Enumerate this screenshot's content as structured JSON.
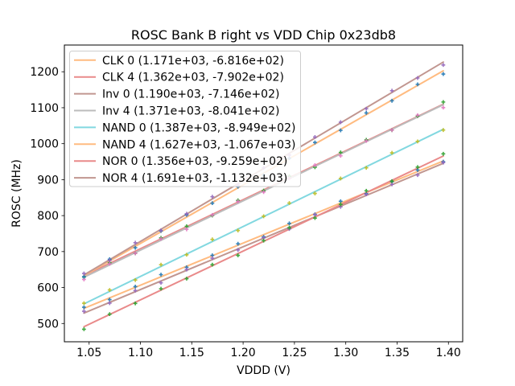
{
  "chart_data": {
    "type": "scatter",
    "title": "ROSC Bank B right vs VDD Chip 0x23db8",
    "xlabel": "VDDD (V)",
    "ylabel": "ROSC (MHz)",
    "xlim": [
      1.0259,
      1.4139
    ],
    "ylim": [
      449.2,
      1274.3
    ],
    "xticks": [
      1.05,
      1.1,
      1.15,
      1.2,
      1.25,
      1.3,
      1.35,
      1.4
    ],
    "xtick_labels": [
      "1.05",
      "1.10",
      "1.15",
      "1.20",
      "1.25",
      "1.30",
      "1.35",
      "1.40"
    ],
    "yticks": [
      500,
      600,
      700,
      800,
      900,
      1000,
      1100,
      1200
    ],
    "ytick_labels": [
      "500",
      "600",
      "700",
      "800",
      "900",
      "1000",
      "1100",
      "1200"
    ],
    "grid": false,
    "legend_position": "upper left",
    "legend_border_color": "#cccccc",
    "axis_color": "#000000",
    "fit_range": [
      1.045,
      1.395
    ],
    "x": [
      1.045,
      1.07,
      1.095,
      1.12,
      1.145,
      1.17,
      1.195,
      1.22,
      1.245,
      1.27,
      1.295,
      1.32,
      1.345,
      1.37,
      1.395
    ],
    "series": [
      {
        "name": "CLK 0",
        "legend_label": "CLK 0 (1.171e+03, -6.816e+02)",
        "fit_slope": 1171.0,
        "fit_intercept": -681.6,
        "line_color": "#ffbb80",
        "marker_color": "#1f77b4",
        "y": [
          545.1,
          566.4,
          602.6,
          635.9,
          656.2,
          689.5,
          721.7,
          741.0,
          778.3,
          803.6,
          839.8,
          861.1,
          894.4,
          926.7,
          949.9
        ]
      },
      {
        "name": "CLK 4",
        "legend_label": "CLK 4 (1.362e+03, -7.902e+02)",
        "fit_slope": 1362.0,
        "fit_intercept": -790.2,
        "line_color": "#e98a8a",
        "marker_color": "#2ca02c",
        "y": [
          629.1,
          669.1,
          695.2,
          738.2,
          770.3,
          800.3,
          842.4,
          869.4,
          909.5,
          934.5,
          975.6,
          1010.6,
          1037.7,
          1076.7,
          1115.8
        ]
      },
      {
        "name": "Inv 0",
        "legend_label": "Inv 0 (1.190e+03, -7.146e+02)",
        "fit_slope": 1190.0,
        "fit_intercept": -714.6,
        "line_color": "#c19690",
        "marker_color": "#9467bd",
        "y": [
          534.0,
          556.7,
          591.5,
          613.2,
          650.0,
          681.7,
          704.5,
          738.2,
          762.9,
          802.7,
          824.4,
          859.2,
          886.9,
          912.7,
          947.4
        ]
      },
      {
        "name": "Inv 4",
        "legend_label": "Inv 4 (1.371e+03, -8.041e+02)",
        "fit_slope": 1371.0,
        "fit_intercept": -804.1,
        "line_color": "#bcbcbc",
        "marker_color": "#e377c2",
        "y": [
          622.6,
          665.9,
          695.1,
          735.4,
          761.7,
          802.0,
          839.2,
          865.5,
          903.8,
          940.1,
          966.3,
          1007.6,
          1037.9,
          1079.2,
          1100.4
        ]
      },
      {
        "name": "NAND 0",
        "legend_label": "NAND 0 (1.387e+03, -8.949e+02)",
        "fit_slope": 1387.0,
        "fit_intercept": -894.9,
        "line_color": "#82d8e0",
        "marker_color": "#bcbd22",
        "y": [
          556.5,
          593.2,
          620.9,
          663.5,
          691.2,
          733.9,
          758.6,
          798.2,
          834.9,
          861.6,
          903.3,
          932.9,
          974.6,
          1006.3,
          1038.0
        ]
      },
      {
        "name": "NAND 4",
        "legend_label": "NAND 4 (1.627e+03, -1.067e+03)",
        "fit_slope": 1627.0,
        "fit_intercept": -1067.0,
        "line_color": "#ffbb80",
        "marker_color": "#1f77b4",
        "y": [
          630.2,
          678.9,
          710.6,
          757.2,
          801.9,
          834.6,
          880.3,
          912.9,
          959.6,
          1003.3,
          1037.0,
          1085.6,
          1119.3,
          1165.0,
          1193.7
        ]
      },
      {
        "name": "NOR 0",
        "legend_label": "NOR 0 (1.356e+03, -9.259e+02)",
        "fit_slope": 1356.0,
        "fit_intercept": -925.9,
        "line_color": "#e98a8a",
        "marker_color": "#2ca02c",
        "y": [
          484.1,
          526.0,
          555.9,
          596.8,
          624.7,
          663.6,
          689.5,
          730.4,
          766.3,
          793.2,
          831.1,
          869.0,
          895.9,
          934.8,
          971.7
        ]
      },
      {
        "name": "NOR 4",
        "legend_label": "NOR 4 (1.691e+03, -1.132e+03)",
        "fit_slope": 1691.0,
        "fit_intercept": -1132.0,
        "line_color": "#c19690",
        "marker_color": "#9467bd",
        "y": [
          639.1,
          675.4,
          724.6,
          758.9,
          805.2,
          852.5,
          884.7,
          933.0,
          968.3,
          1018.5,
          1059.8,
          1097.1,
          1147.4,
          1182.6,
          1218.9
        ]
      }
    ]
  }
}
